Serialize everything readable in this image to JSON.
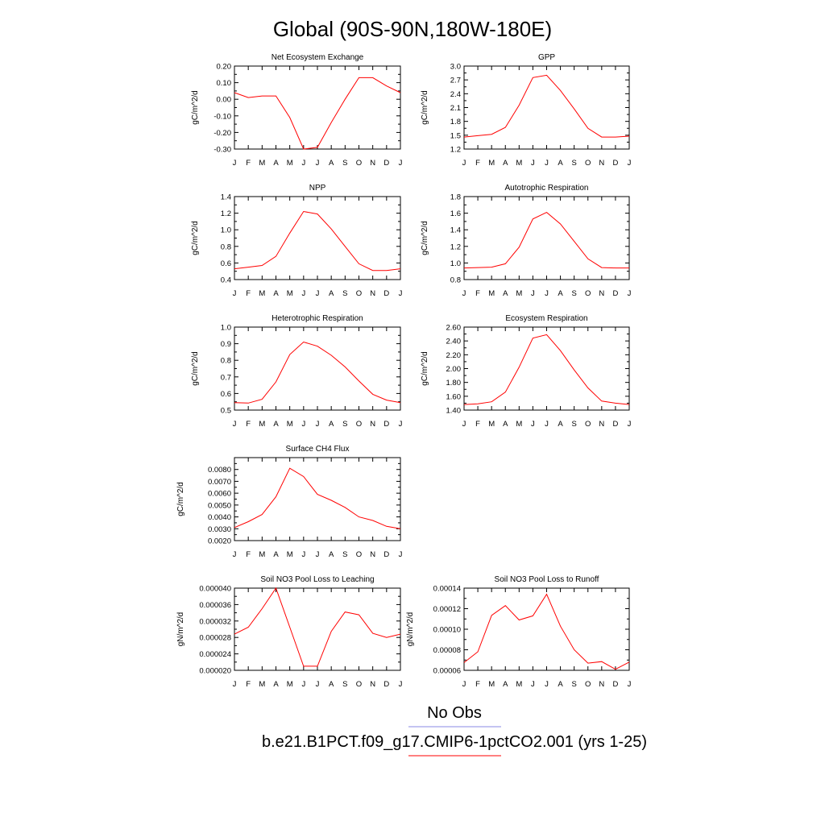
{
  "page_title": "Global (90S-90N,180W-180E)",
  "legend": {
    "entries": [
      {
        "label": "No Obs",
        "color": "#8a8ae6"
      },
      {
        "label": "b.e21.B1PCT.f09_g17.CMIP6-1pctCO2.001 (yrs 1-25)",
        "color": "#ff0000"
      }
    ]
  },
  "chart_data": [
    {
      "type": "line",
      "title": "Net Ecosystem Exchange",
      "ylabel": "gC/m^2/d",
      "categories": [
        "J",
        "F",
        "M",
        "A",
        "M",
        "J",
        "J",
        "A",
        "S",
        "O",
        "N",
        "D",
        "J"
      ],
      "ylim": [
        -0.3,
        0.2
      ],
      "yticks": [
        "0.20",
        "0.10",
        "0.00",
        "-0.10",
        "-0.20",
        "-0.30"
      ],
      "series": [
        {
          "values": [
            0.04,
            0.01,
            0.02,
            0.02,
            -0.11,
            -0.3,
            -0.29,
            -0.14,
            0.0,
            0.13,
            0.13,
            0.08,
            0.04
          ]
        }
      ]
    },
    {
      "type": "line",
      "title": "GPP",
      "ylabel": "gC/m^2/d",
      "categories": [
        "J",
        "F",
        "M",
        "A",
        "M",
        "J",
        "J",
        "A",
        "S",
        "O",
        "N",
        "D",
        "J"
      ],
      "ylim": [
        1.2,
        3.0
      ],
      "yticks": [
        "3.0",
        "2.7",
        "2.4",
        "2.1",
        "1.8",
        "1.5",
        "1.2"
      ],
      "series": [
        {
          "values": [
            1.46,
            1.49,
            1.52,
            1.67,
            2.15,
            2.75,
            2.8,
            2.47,
            2.07,
            1.65,
            1.46,
            1.46,
            1.48
          ]
        }
      ]
    },
    {
      "type": "line",
      "title": "NPP",
      "ylabel": "gC/m^2/d",
      "categories": [
        "J",
        "F",
        "M",
        "A",
        "M",
        "J",
        "J",
        "A",
        "S",
        "O",
        "N",
        "D",
        "J"
      ],
      "ylim": [
        0.4,
        1.4
      ],
      "yticks": [
        "1.4",
        "1.2",
        "1.0",
        "0.8",
        "0.6",
        "0.4"
      ],
      "series": [
        {
          "values": [
            0.53,
            0.55,
            0.57,
            0.68,
            0.96,
            1.22,
            1.19,
            1.01,
            0.8,
            0.59,
            0.51,
            0.51,
            0.53
          ]
        }
      ]
    },
    {
      "type": "line",
      "title": "Autotrophic Respiration",
      "ylabel": "gC/m^2/d",
      "categories": [
        "J",
        "F",
        "M",
        "A",
        "M",
        "J",
        "J",
        "A",
        "S",
        "O",
        "N",
        "D",
        "J"
      ],
      "ylim": [
        0.8,
        1.8
      ],
      "yticks": [
        "1.8",
        "1.6",
        "1.4",
        "1.2",
        "1.0",
        "0.8"
      ],
      "series": [
        {
          "values": [
            0.94,
            0.945,
            0.95,
            0.99,
            1.19,
            1.53,
            1.61,
            1.47,
            1.26,
            1.05,
            0.945,
            0.94,
            0.94
          ]
        }
      ]
    },
    {
      "type": "line",
      "title": "Heterotrophic Respiration",
      "ylabel": "gC/m^2/d",
      "categories": [
        "J",
        "F",
        "M",
        "A",
        "M",
        "J",
        "J",
        "A",
        "S",
        "O",
        "N",
        "D",
        "J"
      ],
      "ylim": [
        0.5,
        1.0
      ],
      "yticks": [
        "1.0",
        "0.9",
        "0.8",
        "0.7",
        "0.6",
        "0.5"
      ],
      "series": [
        {
          "values": [
            0.545,
            0.542,
            0.565,
            0.67,
            0.835,
            0.91,
            0.885,
            0.83,
            0.76,
            0.675,
            0.595,
            0.56,
            0.545
          ]
        }
      ]
    },
    {
      "type": "line",
      "title": "Ecosystem Respiration",
      "ylabel": "gC/m^2/d",
      "categories": [
        "J",
        "F",
        "M",
        "A",
        "M",
        "J",
        "J",
        "A",
        "S",
        "O",
        "N",
        "D",
        "J"
      ],
      "ylim": [
        1.4,
        2.6
      ],
      "yticks": [
        "2.60",
        "2.40",
        "2.20",
        "2.00",
        "1.80",
        "1.60",
        "1.40"
      ],
      "series": [
        {
          "values": [
            1.48,
            1.49,
            1.52,
            1.66,
            2.02,
            2.44,
            2.49,
            2.26,
            1.98,
            1.72,
            1.53,
            1.5,
            1.48
          ]
        }
      ]
    },
    {
      "type": "line",
      "title": "Surface CH4 Flux",
      "ylabel": "gC/m^2/d",
      "categories": [
        "J",
        "F",
        "M",
        "A",
        "M",
        "J",
        "J",
        "A",
        "S",
        "O",
        "N",
        "D",
        "J"
      ],
      "ylim": [
        0.002,
        0.009
      ],
      "yticks": [
        "0.0080",
        "0.0070",
        "0.0060",
        "0.0050",
        "0.0040",
        "0.0030",
        "0.0020"
      ],
      "series": [
        {
          "values": [
            0.0031,
            0.0036,
            0.0042,
            0.0057,
            0.0081,
            0.0074,
            0.0059,
            0.0054,
            0.0048,
            0.004,
            0.0037,
            0.0032,
            0.003
          ]
        }
      ]
    },
    {
      "type": "line",
      "title": "Soil NO3 Pool Loss to Leaching",
      "ylabel": "gN/m^2/d",
      "categories": [
        "J",
        "F",
        "M",
        "A",
        "M",
        "J",
        "J",
        "A",
        "S",
        "O",
        "N",
        "D",
        "J"
      ],
      "ylim": [
        2e-05,
        4e-05
      ],
      "yticks": [
        "0.000040",
        "0.000036",
        "0.000032",
        "0.000028",
        "0.000024",
        "0.000020"
      ],
      "series": [
        {
          "values": [
            2.88e-05,
            3.05e-05,
            3.5e-05,
            4e-05,
            3.05e-05,
            2.1e-05,
            2.1e-05,
            2.95e-05,
            3.42e-05,
            3.35e-05,
            2.9e-05,
            2.8e-05,
            2.88e-05
          ]
        }
      ]
    },
    {
      "type": "line",
      "title": "Soil NO3 Pool Loss to Runoff",
      "ylabel": "gN/m^2/d",
      "categories": [
        "J",
        "F",
        "M",
        "A",
        "M",
        "J",
        "J",
        "A",
        "S",
        "O",
        "N",
        "D",
        "J"
      ],
      "ylim": [
        6e-05,
        0.00014
      ],
      "yticks": [
        "0.00014",
        "0.00012",
        "0.00010",
        "0.00008",
        "0.00006"
      ],
      "series": [
        {
          "values": [
            6.75e-05,
            7.8e-05,
            0.0001135,
            0.000123,
            0.000109,
            0.000113,
            0.000134,
            0.000103,
            8e-05,
            6.7e-05,
            6.85e-05,
            6.1e-05,
            6.8e-05
          ]
        }
      ]
    }
  ]
}
